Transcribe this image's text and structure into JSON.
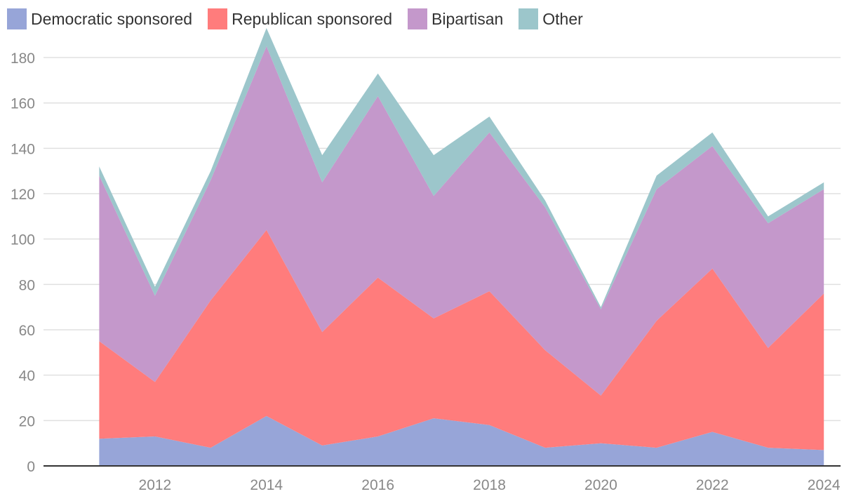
{
  "chart_data": {
    "type": "area",
    "stacked": true,
    "title": "",
    "xlabel": "",
    "ylabel": "",
    "x": [
      2011,
      2012,
      2013,
      2014,
      2015,
      2016,
      2017,
      2018,
      2019,
      2020,
      2021,
      2022,
      2023,
      2024
    ],
    "x_ticks": [
      2012,
      2014,
      2016,
      2018,
      2020,
      2022,
      2024
    ],
    "y_ticks": [
      0,
      20,
      40,
      60,
      80,
      100,
      120,
      140,
      160,
      180
    ],
    "xlim": [
      2010.0,
      2024.3
    ],
    "ylim": [
      0,
      193
    ],
    "grid": true,
    "legend_position": "top-left",
    "series": [
      {
        "name": "Democratic sponsored",
        "color": "#97A5D8",
        "values": [
          12,
          13,
          8,
          22,
          9,
          13,
          21,
          18,
          8,
          10,
          8,
          15,
          8,
          7
        ]
      },
      {
        "name": "Republican sponsored",
        "color": "#FF7C7C",
        "values": [
          43,
          24,
          65,
          82,
          50,
          70,
          44,
          59,
          43,
          21,
          56,
          72,
          44,
          69
        ]
      },
      {
        "name": "Bipartisan",
        "color": "#C498CB",
        "values": [
          73,
          38,
          53,
          81,
          66,
          80,
          54,
          70,
          63,
          38,
          58,
          54,
          55,
          46
        ]
      },
      {
        "name": "Other",
        "color": "#9CC6CB",
        "values": [
          4,
          4,
          4,
          8,
          12,
          10,
          18,
          7,
          3,
          1,
          6,
          6,
          3,
          3
        ]
      }
    ]
  }
}
